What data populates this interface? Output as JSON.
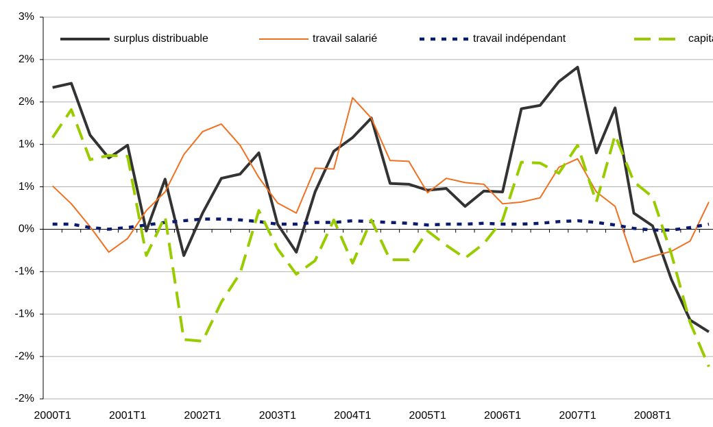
{
  "chart_data": {
    "type": "line",
    "categories": [
      "2000T1",
      null,
      null,
      null,
      "2001T1",
      null,
      null,
      null,
      "2002T1",
      null,
      null,
      null,
      "2003T1",
      null,
      null,
      null,
      "2004T1",
      null,
      null,
      null,
      "2005T1",
      null,
      null,
      null,
      "2006T1",
      null,
      null,
      null,
      "2007T1",
      null,
      null,
      null,
      "2008T1",
      null,
      null,
      null
    ],
    "series": [
      {
        "name": "surplus distribuable",
        "color": "#333333",
        "values": [
          1.67,
          1.72,
          1.11,
          0.84,
          0.99,
          -0.02,
          0.59,
          -0.31,
          0.19,
          0.6,
          0.65,
          0.9,
          0.06,
          -0.27,
          0.44,
          0.92,
          1.08,
          1.31,
          0.54,
          0.53,
          0.46,
          0.48,
          0.27,
          0.45,
          0.44,
          1.42,
          1.46,
          1.74,
          1.91,
          0.9,
          1.43,
          0.19,
          0.04,
          -0.59,
          -1.07,
          -1.21
        ]
      },
      {
        "name": "travail salarié",
        "color": "#f07020",
        "values": [
          0.51,
          0.3,
          0.03,
          -0.27,
          -0.11,
          0.22,
          0.44,
          0.88,
          1.15,
          1.24,
          0.99,
          0.61,
          0.31,
          0.19,
          0.72,
          0.71,
          1.55,
          1.31,
          0.81,
          0.8,
          0.43,
          0.6,
          0.55,
          0.53,
          0.3,
          0.32,
          0.37,
          0.73,
          0.83,
          0.44,
          0.27,
          -0.39,
          -0.32,
          -0.26,
          -0.14,
          0.32
        ]
      },
      {
        "name": "travail indépendant",
        "color": "#0a1a6e",
        "values": [
          0.06,
          0.06,
          0.02,
          0.0,
          0.02,
          0.05,
          0.08,
          0.1,
          0.12,
          0.12,
          0.11,
          0.09,
          0.06,
          0.06,
          0.08,
          0.08,
          0.1,
          0.09,
          0.08,
          0.07,
          0.05,
          0.06,
          0.06,
          0.07,
          0.06,
          0.06,
          0.07,
          0.09,
          0.1,
          0.08,
          0.05,
          0.01,
          -0.01,
          -0.01,
          0.02,
          0.06
        ]
      },
      {
        "name": "capital",
        "color": "#99cc00",
        "values": [
          1.08,
          1.41,
          0.82,
          0.87,
          0.86,
          -0.31,
          0.15,
          -1.3,
          -1.32,
          -0.86,
          -0.52,
          0.22,
          -0.23,
          -0.53,
          -0.37,
          0.11,
          -0.4,
          0.11,
          -0.36,
          -0.36,
          -0.02,
          -0.19,
          -0.34,
          -0.17,
          0.11,
          0.79,
          0.78,
          0.66,
          0.99,
          0.32,
          1.11,
          0.56,
          0.38,
          -0.29,
          -1.1,
          -1.62
        ]
      }
    ],
    "ylim": [
      -2.0,
      2.5
    ],
    "yticks": [
      {
        "value": -2.0,
        "label": "-2%"
      },
      {
        "value": -1.5,
        "label": "-2%"
      },
      {
        "value": -1.0,
        "label": "-1%"
      },
      {
        "value": -0.5,
        "label": "-1%"
      },
      {
        "value": 0,
        "label": "0%"
      },
      {
        "value": 0.5,
        "label": "1%"
      },
      {
        "value": 1.0,
        "label": "1%"
      },
      {
        "value": 1.5,
        "label": "2%"
      },
      {
        "value": 2.0,
        "label": "2%"
      },
      {
        "value": 2.5,
        "label": "3%"
      }
    ],
    "grid": true,
    "legend": "top"
  }
}
